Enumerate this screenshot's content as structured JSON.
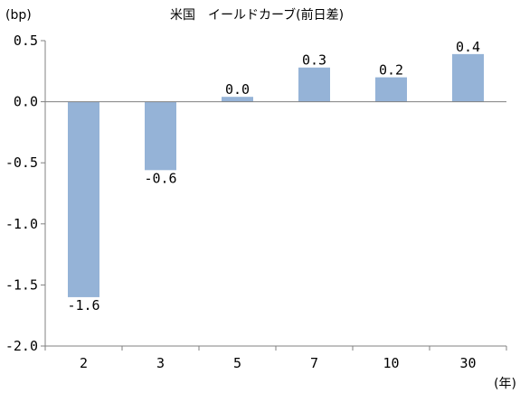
{
  "chart_data": {
    "type": "bar",
    "title": "米国　イールドカーブ(前日差)",
    "ylabel": "(bp)",
    "xlabel": "(年)",
    "categories": [
      "2",
      "3",
      "5",
      "7",
      "10",
      "30"
    ],
    "values": [
      -1.6,
      -0.56,
      0.04,
      0.28,
      0.2,
      0.39
    ],
    "data_labels": [
      "-1.6",
      "-0.6",
      "0.0",
      "0.3",
      "0.2",
      "0.4"
    ],
    "ylim": [
      -2.0,
      0.5
    ],
    "yticks": [
      0.5,
      0.0,
      -0.5,
      -1.0,
      -1.5,
      -2.0
    ],
    "ytick_labels": [
      "0.5",
      "0.0",
      "-0.5",
      "-1.0",
      "-1.5",
      "-2.0"
    ],
    "bar_color": "#95b3d7",
    "grid": false,
    "legend": "none"
  }
}
